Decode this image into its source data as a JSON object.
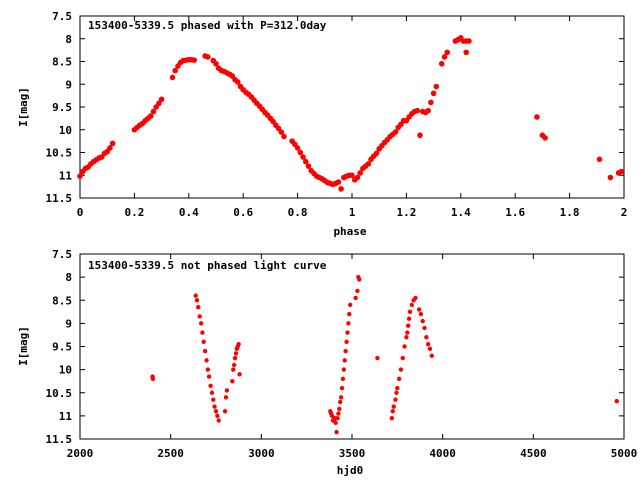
{
  "chart_data": [
    {
      "type": "scatter",
      "title": "153400-5339.5 phased with P=312.0day",
      "xlabel": "phase",
      "ylabel": "I[mag]",
      "xlim": [
        0,
        2
      ],
      "ylim": [
        7.5,
        11.5
      ],
      "y_inverted": true,
      "xticks": [
        "0",
        "0.2",
        "0.4",
        "0.6",
        "0.8",
        "1",
        "1.2",
        "1.4",
        "1.6",
        "1.8",
        "2"
      ],
      "yticks": [
        "7.5",
        "8",
        "8.5",
        "9",
        "9.5",
        "10",
        "10.5",
        "11",
        "11.5"
      ],
      "marker_color": "#ff0000",
      "grid": false,
      "points": [
        [
          0.0,
          11.02
        ],
        [
          0.01,
          10.92
        ],
        [
          0.02,
          10.85
        ],
        [
          0.03,
          10.82
        ],
        [
          0.04,
          10.75
        ],
        [
          0.05,
          10.7
        ],
        [
          0.06,
          10.66
        ],
        [
          0.07,
          10.62
        ],
        [
          0.08,
          10.6
        ],
        [
          0.09,
          10.52
        ],
        [
          0.1,
          10.48
        ],
        [
          0.11,
          10.4
        ],
        [
          0.12,
          10.3
        ],
        [
          0.2,
          10.0
        ],
        [
          0.21,
          9.95
        ],
        [
          0.22,
          9.9
        ],
        [
          0.23,
          9.86
        ],
        [
          0.24,
          9.8
        ],
        [
          0.25,
          9.75
        ],
        [
          0.26,
          9.7
        ],
        [
          0.27,
          9.6
        ],
        [
          0.28,
          9.5
        ],
        [
          0.29,
          9.42
        ],
        [
          0.3,
          9.33
        ],
        [
          0.34,
          8.85
        ],
        [
          0.35,
          8.7
        ],
        [
          0.36,
          8.6
        ],
        [
          0.37,
          8.52
        ],
        [
          0.38,
          8.48
        ],
        [
          0.39,
          8.47
        ],
        [
          0.4,
          8.46
        ],
        [
          0.41,
          8.46
        ],
        [
          0.42,
          8.47
        ],
        [
          0.46,
          8.38
        ],
        [
          0.47,
          8.4
        ],
        [
          0.49,
          8.48
        ],
        [
          0.5,
          8.55
        ],
        [
          0.51,
          8.65
        ],
        [
          0.52,
          8.7
        ],
        [
          0.53,
          8.72
        ],
        [
          0.54,
          8.75
        ],
        [
          0.55,
          8.78
        ],
        [
          0.56,
          8.82
        ],
        [
          0.57,
          8.9
        ],
        [
          0.58,
          8.95
        ],
        [
          0.59,
          9.05
        ],
        [
          0.6,
          9.12
        ],
        [
          0.61,
          9.18
        ],
        [
          0.62,
          9.22
        ],
        [
          0.63,
          9.28
        ],
        [
          0.64,
          9.35
        ],
        [
          0.65,
          9.42
        ],
        [
          0.66,
          9.48
        ],
        [
          0.67,
          9.55
        ],
        [
          0.68,
          9.62
        ],
        [
          0.69,
          9.68
        ],
        [
          0.7,
          9.75
        ],
        [
          0.71,
          9.82
        ],
        [
          0.72,
          9.9
        ],
        [
          0.73,
          9.97
        ],
        [
          0.74,
          10.05
        ],
        [
          0.75,
          10.15
        ],
        [
          0.78,
          10.25
        ],
        [
          0.79,
          10.32
        ],
        [
          0.8,
          10.4
        ],
        [
          0.81,
          10.5
        ],
        [
          0.82,
          10.6
        ],
        [
          0.83,
          10.7
        ],
        [
          0.84,
          10.8
        ],
        [
          0.85,
          10.9
        ],
        [
          0.86,
          10.96
        ],
        [
          0.87,
          11.02
        ],
        [
          0.88,
          11.05
        ],
        [
          0.89,
          11.08
        ],
        [
          0.9,
          11.12
        ],
        [
          0.91,
          11.16
        ],
        [
          0.92,
          11.18
        ],
        [
          0.93,
          11.2
        ],
        [
          0.94,
          11.18
        ],
        [
          0.95,
          11.15
        ],
        [
          0.96,
          11.3
        ],
        [
          0.97,
          11.05
        ],
        [
          0.98,
          11.02
        ],
        [
          0.99,
          11.0
        ],
        [
          1.0,
          11.0
        ],
        [
          1.01,
          11.1
        ],
        [
          1.02,
          11.05
        ],
        [
          1.03,
          10.95
        ],
        [
          1.04,
          10.85
        ],
        [
          1.05,
          10.8
        ],
        [
          1.06,
          10.75
        ],
        [
          1.07,
          10.65
        ],
        [
          1.08,
          10.58
        ],
        [
          1.09,
          10.52
        ],
        [
          1.1,
          10.42
        ],
        [
          1.11,
          10.35
        ],
        [
          1.12,
          10.28
        ],
        [
          1.13,
          10.22
        ],
        [
          1.14,
          10.15
        ],
        [
          1.15,
          10.1
        ],
        [
          1.16,
          10.05
        ],
        [
          1.17,
          9.95
        ],
        [
          1.18,
          9.88
        ],
        [
          1.19,
          9.8
        ],
        [
          1.2,
          9.8
        ],
        [
          1.21,
          9.72
        ],
        [
          1.22,
          9.65
        ],
        [
          1.23,
          9.6
        ],
        [
          1.24,
          9.58
        ],
        [
          1.25,
          10.12
        ],
        [
          1.26,
          9.6
        ],
        [
          1.27,
          9.62
        ],
        [
          1.28,
          9.58
        ],
        [
          1.29,
          9.4
        ],
        [
          1.3,
          9.2
        ],
        [
          1.31,
          9.05
        ],
        [
          1.33,
          8.55
        ],
        [
          1.34,
          8.4
        ],
        [
          1.35,
          8.3
        ],
        [
          1.38,
          8.05
        ],
        [
          1.39,
          8.02
        ],
        [
          1.4,
          7.98
        ],
        [
          1.41,
          8.05
        ],
        [
          1.42,
          8.05
        ],
        [
          1.43,
          8.05
        ],
        [
          1.42,
          8.3
        ],
        [
          1.68,
          9.72
        ],
        [
          1.7,
          10.12
        ],
        [
          1.71,
          10.18
        ],
        [
          1.91,
          10.65
        ],
        [
          1.95,
          11.05
        ],
        [
          1.98,
          10.95
        ],
        [
          1.99,
          10.92
        ]
      ]
    },
    {
      "type": "scatter",
      "title": "153400-5339.5 not phased light curve",
      "xlabel": "hjd0",
      "ylabel": "I[mag]",
      "xlim": [
        2000,
        5000
      ],
      "ylim": [
        7.5,
        11.5
      ],
      "y_inverted": true,
      "xticks": [
        "2000",
        "2500",
        "3000",
        "3500",
        "4000",
        "4500",
        "5000"
      ],
      "yticks": [
        "7.5",
        "8",
        "8.5",
        "9",
        "9.5",
        "10",
        "10.5",
        "11",
        "11.5"
      ],
      "marker_color": "#ff0000",
      "grid": false,
      "points": [
        [
          2400,
          10.15
        ],
        [
          2402,
          10.2
        ],
        [
          2638,
          8.4
        ],
        [
          2645,
          8.5
        ],
        [
          2652,
          8.65
        ],
        [
          2660,
          8.85
        ],
        [
          2668,
          9.0
        ],
        [
          2675,
          9.2
        ],
        [
          2682,
          9.4
        ],
        [
          2690,
          9.6
        ],
        [
          2698,
          9.8
        ],
        [
          2705,
          10.0
        ],
        [
          2712,
          10.15
        ],
        [
          2720,
          10.35
        ],
        [
          2728,
          10.5
        ],
        [
          2735,
          10.65
        ],
        [
          2742,
          10.8
        ],
        [
          2750,
          10.9
        ],
        [
          2758,
          11.0
        ],
        [
          2765,
          11.1
        ],
        [
          2800,
          10.9
        ],
        [
          2805,
          10.6
        ],
        [
          2810,
          10.45
        ],
        [
          2840,
          10.25
        ],
        [
          2845,
          10.0
        ],
        [
          2850,
          9.9
        ],
        [
          2855,
          9.75
        ],
        [
          2860,
          9.65
        ],
        [
          2865,
          9.55
        ],
        [
          2870,
          9.5
        ],
        [
          2875,
          9.45
        ],
        [
          2880,
          10.1
        ],
        [
          3380,
          10.9
        ],
        [
          3385,
          10.95
        ],
        [
          3390,
          11.0
        ],
        [
          3395,
          11.1
        ],
        [
          3400,
          11.1
        ],
        [
          3405,
          11.05
        ],
        [
          3410,
          11.15
        ],
        [
          3415,
          11.35
        ],
        [
          3420,
          11.05
        ],
        [
          3425,
          10.95
        ],
        [
          3430,
          10.85
        ],
        [
          3435,
          10.7
        ],
        [
          3440,
          10.6
        ],
        [
          3445,
          10.4
        ],
        [
          3450,
          10.2
        ],
        [
          3455,
          10.0
        ],
        [
          3460,
          9.8
        ],
        [
          3465,
          9.6
        ],
        [
          3470,
          9.4
        ],
        [
          3475,
          9.2
        ],
        [
          3480,
          9.0
        ],
        [
          3485,
          8.8
        ],
        [
          3490,
          8.6
        ],
        [
          3520,
          8.45
        ],
        [
          3530,
          8.3
        ],
        [
          3535,
          8.0
        ],
        [
          3540,
          8.05
        ],
        [
          3640,
          9.75
        ],
        [
          3720,
          11.05
        ],
        [
          3725,
          10.9
        ],
        [
          3730,
          10.8
        ],
        [
          3740,
          10.65
        ],
        [
          3745,
          10.5
        ],
        [
          3750,
          10.4
        ],
        [
          3760,
          10.2
        ],
        [
          3770,
          10.0
        ],
        [
          3780,
          9.75
        ],
        [
          3790,
          9.5
        ],
        [
          3800,
          9.3
        ],
        [
          3805,
          9.2
        ],
        [
          3810,
          9.05
        ],
        [
          3815,
          8.9
        ],
        [
          3820,
          8.75
        ],
        [
          3830,
          8.6
        ],
        [
          3840,
          8.5
        ],
        [
          3850,
          8.45
        ],
        [
          3870,
          8.7
        ],
        [
          3880,
          8.8
        ],
        [
          3890,
          8.95
        ],
        [
          3900,
          9.1
        ],
        [
          3910,
          9.3
        ],
        [
          3920,
          9.45
        ],
        [
          3930,
          9.55
        ],
        [
          3940,
          9.7
        ],
        [
          4960,
          10.68
        ]
      ]
    }
  ]
}
